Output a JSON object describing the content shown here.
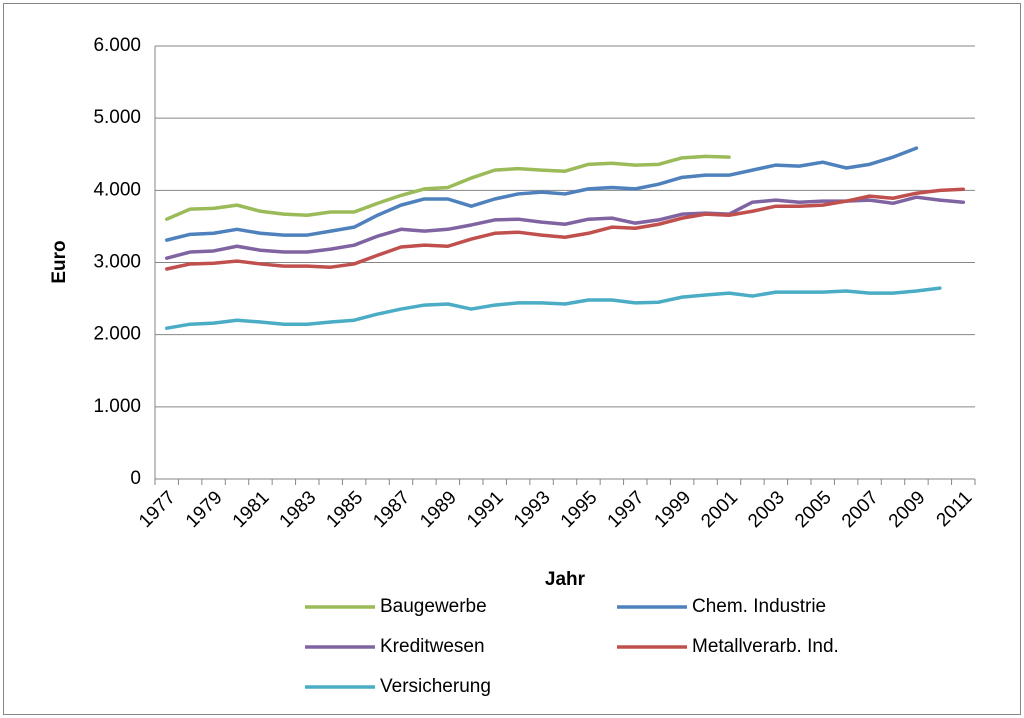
{
  "chart_data": {
    "type": "line",
    "x_label": "Jahr",
    "y_label": "Euro",
    "categories": [
      "1977",
      null,
      "1979",
      null,
      "1981",
      null,
      "1983",
      null,
      "1985",
      null,
      "1987",
      null,
      "1989",
      null,
      "1991",
      null,
      "1993",
      null,
      "1995",
      null,
      "1997",
      null,
      "1999",
      null,
      "2001",
      null,
      "2003",
      null,
      "2005",
      null,
      "2007",
      null,
      "2009",
      null,
      "2011"
    ],
    "ylim": [
      0,
      6000
    ],
    "yticks": [
      0,
      {
        "value": 1000,
        "label": "1.000"
      },
      {
        "value": 2000,
        "label": "2.000"
      },
      {
        "value": 3000,
        "label": "3.000"
      },
      {
        "value": 4000,
        "label": "4.000"
      },
      {
        "value": 5000,
        "label": "5.000"
      },
      {
        "value": 6000,
        "label": "6.000"
      }
    ],
    "grid": true,
    "legend": "bottom",
    "series": [
      {
        "name": "Baugewerbe",
        "color": "#9bbb59",
        "values": [
          3600,
          3740,
          3750,
          3795,
          3710,
          3670,
          3655,
          3700,
          3700,
          3820,
          3930,
          4020,
          4040,
          4170,
          4280,
          4300,
          4280,
          4265,
          4360,
          4375,
          4350,
          4360,
          4450,
          4470,
          4460,
          null,
          null,
          null,
          null,
          null,
          null,
          null,
          null,
          null,
          null
        ]
      },
      {
        "name": "Chem. Industrie",
        "color": "#4f81bd",
        "values": [
          3310,
          3390,
          3405,
          3460,
          3405,
          3380,
          3380,
          3435,
          3490,
          3655,
          3795,
          3880,
          3880,
          3780,
          3880,
          3950,
          3975,
          3950,
          4020,
          4040,
          4020,
          4085,
          4180,
          4210,
          4210,
          4280,
          4350,
          4335,
          4390,
          4310,
          4360,
          4460,
          4585,
          null,
          null
        ]
      },
      {
        "name": "Kreditwesen",
        "color": "#8064a2",
        "values": [
          3060,
          3145,
          3160,
          3225,
          3170,
          3145,
          3145,
          3185,
          3240,
          3365,
          3460,
          3435,
          3460,
          3520,
          3590,
          3600,
          3560,
          3530,
          3600,
          3615,
          3545,
          3590,
          3670,
          3685,
          3670,
          3835,
          3865,
          3835,
          3850,
          3850,
          3865,
          3820,
          3905,
          3865,
          3835
        ]
      },
      {
        "name": "Metallverarb. Ind.",
        "color": "#c0504d",
        "values": [
          2910,
          2980,
          2990,
          3020,
          2980,
          2950,
          2950,
          2935,
          2980,
          3100,
          3215,
          3240,
          3225,
          3325,
          3405,
          3420,
          3380,
          3350,
          3405,
          3490,
          3475,
          3530,
          3615,
          3670,
          3655,
          3710,
          3780,
          3780,
          3795,
          3850,
          3920,
          3890,
          3960,
          4000,
          4015
        ]
      },
      {
        "name": "Versicherung",
        "color": "#4bacc6",
        "values": [
          2090,
          2145,
          2160,
          2200,
          2175,
          2145,
          2145,
          2175,
          2200,
          2285,
          2355,
          2410,
          2425,
          2355,
          2410,
          2440,
          2440,
          2425,
          2480,
          2480,
          2440,
          2450,
          2520,
          2550,
          2575,
          2535,
          2590,
          2590,
          2590,
          2605,
          2575,
          2575,
          2605,
          2645,
          null
        ]
      }
    ]
  }
}
